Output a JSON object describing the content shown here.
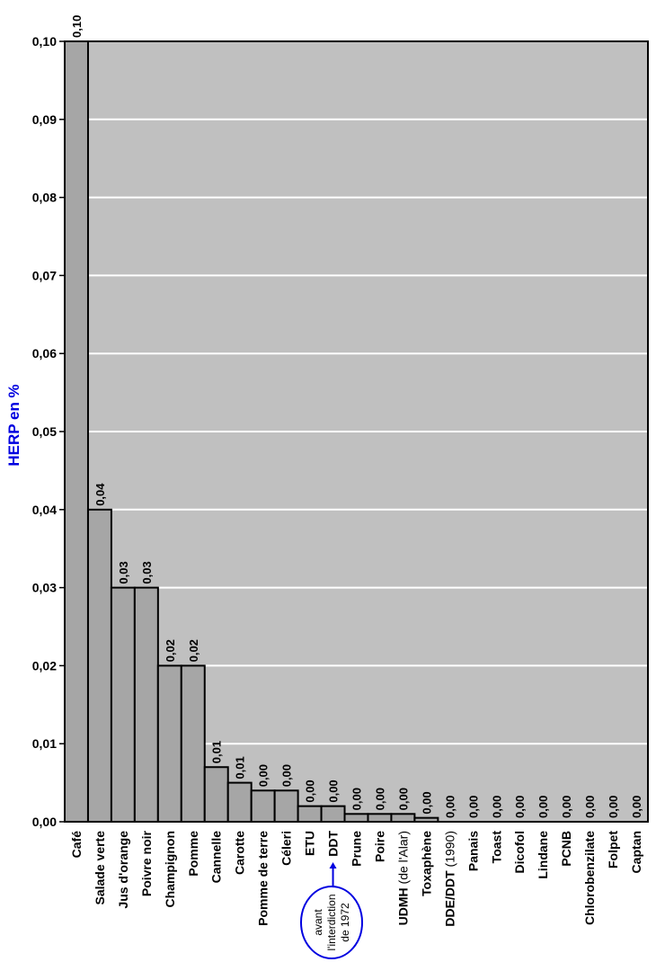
{
  "chart_data": {
    "type": "bar",
    "title": "",
    "xlabel": "",
    "ylabel": "HERP en %",
    "ylim": [
      0,
      0.1
    ],
    "yticks": [
      "0,00",
      "0,01",
      "0,02",
      "0,03",
      "0,04",
      "0,05",
      "0,06",
      "0,07",
      "0,08",
      "0,09",
      "0,10"
    ],
    "grid": true,
    "categories": [
      {
        "label": "Café"
      },
      {
        "label": "Salade verte"
      },
      {
        "label": "Jus d'orange"
      },
      {
        "label": "Poivre noir"
      },
      {
        "label": "Champignon"
      },
      {
        "label": "Pomme"
      },
      {
        "label": "Cannelle"
      },
      {
        "label": "Carotte"
      },
      {
        "label": "Pomme de terre"
      },
      {
        "label": "Céleri"
      },
      {
        "label": "ETU"
      },
      {
        "label": "DDT",
        "highlight": true
      },
      {
        "label": "Prune"
      },
      {
        "label": "Poire"
      },
      {
        "label": "UDMH",
        "suffix": "(de l'Alar)"
      },
      {
        "label": "Toxaphène"
      },
      {
        "label": "DDE/DDT",
        "suffix": "(1990)"
      },
      {
        "label": "Panais"
      },
      {
        "label": "Toast"
      },
      {
        "label": "Dicofol"
      },
      {
        "label": "Lindane"
      },
      {
        "label": "PCNB"
      },
      {
        "label": "Chlorobenzilate"
      },
      {
        "label": "Folpet"
      },
      {
        "label": "Captan"
      }
    ],
    "values": [
      0.1,
      0.04,
      0.03,
      0.03,
      0.02,
      0.02,
      0.007,
      0.005,
      0.004,
      0.004,
      0.002,
      0.002,
      0.001,
      0.001,
      0.001,
      0.0005,
      0,
      0,
      0,
      0,
      0,
      0,
      0,
      0,
      0
    ],
    "value_labels": [
      "0,10",
      "0,04",
      "0,03",
      "0,03",
      "0,02",
      "0,02",
      "0,01",
      "0,01",
      "0,00",
      "0,00",
      "0,00",
      "0,00",
      "0,00",
      "0,00",
      "0,00",
      "0,00",
      "0,00",
      "0,00",
      "0,00",
      "0,00",
      "0,00",
      "0,00",
      "0,00",
      "0,00",
      "0,00"
    ],
    "annotation": {
      "target": "DDT",
      "lines": [
        "avant",
        "l'interdiction",
        "de 1972"
      ]
    },
    "colors": {
      "bar": "#a6a6a6",
      "plot_bg": "#c0c0c0",
      "grid": "#ffffff",
      "highlight": "#0000e0"
    }
  }
}
